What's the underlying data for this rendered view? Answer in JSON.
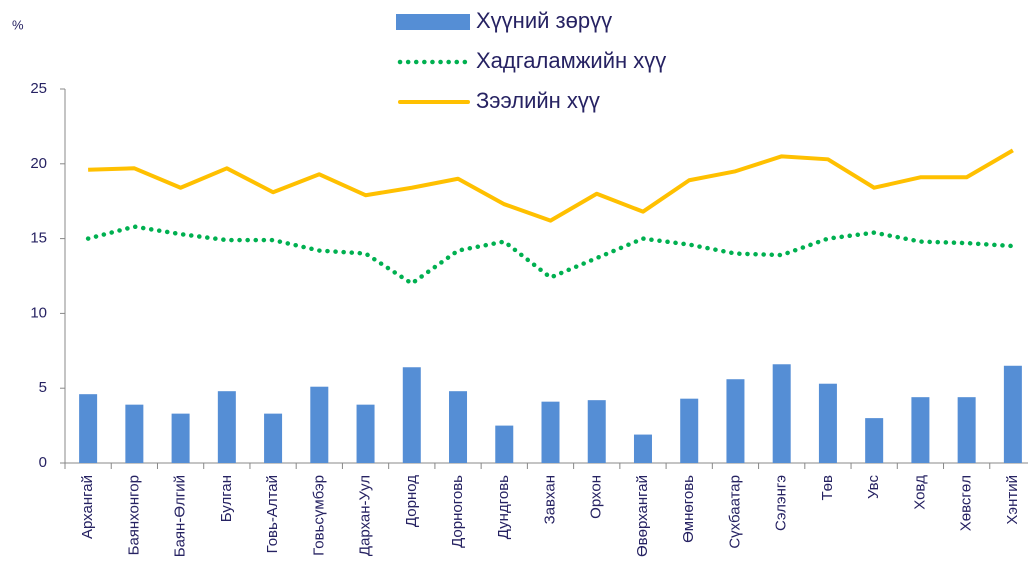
{
  "chart_data": {
    "type": "bar_line",
    "y_label": "%",
    "categories": [
      "Архангай",
      "Баянхонгор",
      "Баян-Өлгий",
      "Булган",
      "Говь-Алтай",
      "Говьсүмбэр",
      "Дархан-Уул",
      "Дорнод",
      "Дорноговь",
      "Дундговь",
      "Завхан",
      "Орхон",
      "Өвөрхангай",
      "Өмнөговь",
      "Сүхбаатар",
      "Сэлэнгэ",
      "Төв",
      "Увс",
      "Ховд",
      "Хөвсгөл",
      "Хэнтий"
    ],
    "series": [
      {
        "name": "Хүүний зөрүү",
        "type": "bar",
        "color": "#558ed5",
        "values": [
          4.6,
          3.9,
          3.3,
          4.8,
          3.3,
          5.1,
          3.9,
          6.4,
          4.8,
          2.5,
          4.1,
          4.2,
          1.9,
          4.3,
          5.6,
          6.6,
          5.3,
          3.0,
          4.4,
          4.4,
          6.5
        ]
      },
      {
        "name": "Хадгаламжийн хүү",
        "type": "dotted",
        "color": "#00b050",
        "values": [
          15.0,
          15.8,
          15.3,
          14.9,
          14.9,
          14.2,
          14.0,
          12.0,
          14.2,
          14.8,
          12.4,
          13.7,
          15.0,
          14.6,
          14.0,
          13.9,
          15.0,
          15.4,
          14.8,
          14.7,
          14.5
        ]
      },
      {
        "name": "Зээлийн хүү",
        "type": "line",
        "color": "#ffc000",
        "values": [
          19.6,
          19.7,
          18.4,
          19.7,
          18.1,
          19.3,
          17.9,
          18.4,
          19.0,
          17.3,
          16.2,
          18.0,
          16.8,
          18.9,
          19.5,
          20.5,
          20.3,
          18.4,
          19.1,
          19.1,
          20.9
        ]
      }
    ],
    "ylim": [
      0,
      25
    ],
    "yticks": [
      0,
      5,
      10,
      15,
      20,
      25
    ],
    "legend": "top"
  }
}
